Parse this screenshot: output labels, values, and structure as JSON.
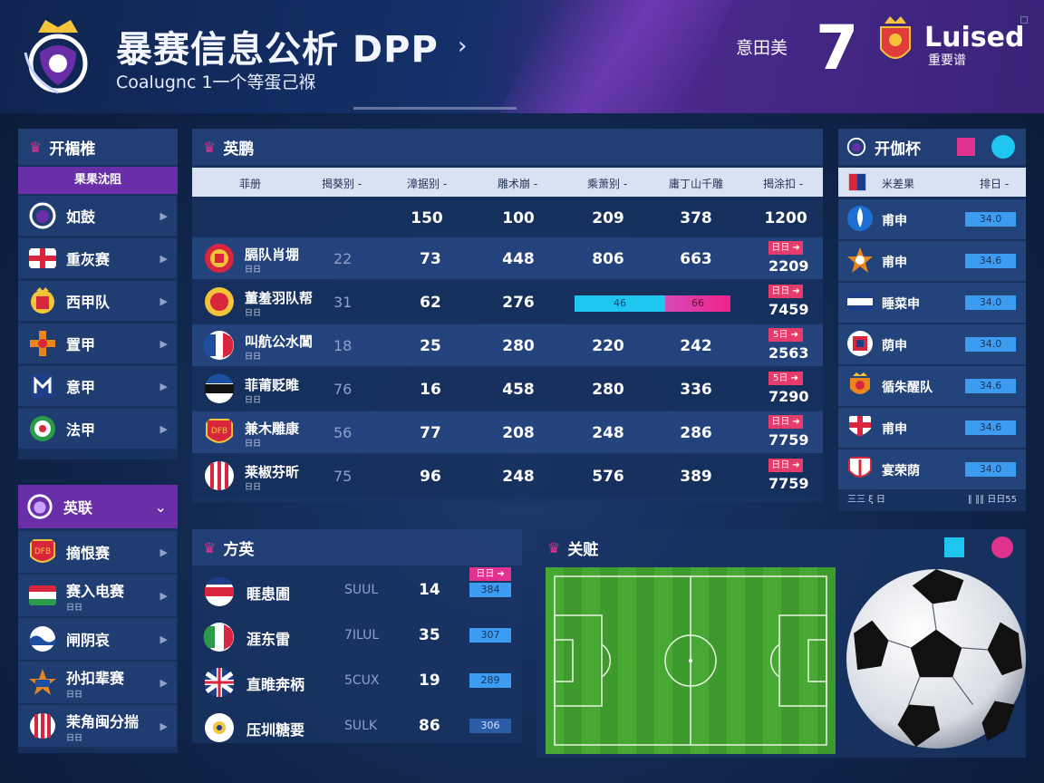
{
  "header": {
    "title": "暴赛信息公析 DPP",
    "title_arrow": "›",
    "subtitle": "Coalugnc 1一个等蛋己褓",
    "round_label": "意田美",
    "round_number": "7",
    "brand_name": "Luised",
    "brand_sub": "重要谱"
  },
  "sidebar_top": {
    "title": "开楣椎",
    "subheader": "果果沈阻",
    "items": [
      {
        "label": "如鼓"
      },
      {
        "label": "重灰赛"
      },
      {
        "label": "西甲队"
      },
      {
        "label": "置甲"
      },
      {
        "label": "意甲"
      },
      {
        "label": "法甲"
      }
    ]
  },
  "sidebar_bottom": {
    "title": "英联",
    "chevron": "⌄",
    "items": [
      {
        "label": "摘恨赛",
        "sub": ""
      },
      {
        "label": "赛入电赛",
        "sub": "日日"
      },
      {
        "label": "闸阴哀",
        "sub": ""
      },
      {
        "label": "孙扣辈赛",
        "sub": "日日"
      },
      {
        "label": "茉角闽分揣",
        "sub": "日日"
      }
    ]
  },
  "main_table": {
    "title": "英鹏",
    "headers": [
      "菲册",
      "揭葵别 -",
      "漳据别 -",
      "雕术崩 -",
      "乘萧别 -",
      "庸丁山千雕",
      "揭涂扣 -"
    ],
    "summary": [
      "150",
      "100",
      "209",
      "378",
      "1200"
    ],
    "rows": [
      {
        "name": "膈队肖堋",
        "sub": "日日",
        "num": "22",
        "v1": "73",
        "v2": "448",
        "v3": "806",
        "v4": "663",
        "badge": "日日 ➔",
        "last": "2209"
      },
      {
        "name": "董羞羽队帮",
        "sub": "日日",
        "num": "31",
        "v1": "62",
        "v2": "276",
        "bar_cyan": "46",
        "bar_pink": "66",
        "badge": "日日 ➔",
        "last": "7459"
      },
      {
        "name": "叫航公水閶",
        "sub": "日日",
        "num": "18",
        "v1": "25",
        "v2": "280",
        "v3": "220",
        "v4": "242",
        "badge": "5日 ➔",
        "last": "2563"
      },
      {
        "name": "菲莆贬睢",
        "sub": "日日",
        "num": "76",
        "v1": "16",
        "v2": "458",
        "v3": "280",
        "v4": "336",
        "badge": "5日 ➔",
        "last": "7290"
      },
      {
        "name": "兼木雕康",
        "sub": "日日",
        "num": "56",
        "v1": "77",
        "v2": "208",
        "v3": "248",
        "v4": "286",
        "badge": "日日 ➔",
        "last": "7759"
      },
      {
        "name": "莱椒芬昕",
        "sub": "日日",
        "num": "75",
        "v1": "96",
        "v2": "248",
        "v3": "576",
        "v4": "389",
        "badge": "日日 ➔",
        "last": "7759"
      }
    ]
  },
  "right_panel": {
    "title": "开伽杯",
    "col1": "米差果",
    "col2": "排日 -",
    "rows": [
      {
        "name": "甫申",
        "val": "34.0"
      },
      {
        "name": "甫申",
        "val": "34.6"
      },
      {
        "name": "睡菜申",
        "val": "34.0"
      },
      {
        "name": "荫申",
        "val": "34.0"
      },
      {
        "name": "循朱醒队",
        "val": "34.6"
      },
      {
        "name": "甫申",
        "val": "34.6"
      },
      {
        "name": "宴荣荫",
        "val": "34.0"
      }
    ],
    "footer_left": "三三   ξ   日",
    "footer_right": "∥ ∥∥ 日日55"
  },
  "bottom_left": {
    "title": "方英",
    "badge_top": "日日 ➔",
    "rows": [
      {
        "name": "睚患圃",
        "code": "SUUL",
        "val": "14",
        "pill": "384"
      },
      {
        "name": "涯东雷",
        "code": "7ILUL",
        "val": "35",
        "pill": "307"
      },
      {
        "name": "直睢奔柄",
        "code": "5CUX",
        "val": "19",
        "pill": "289"
      },
      {
        "name": "压圳糖要",
        "code": "SULK",
        "val": "86",
        "pill": "306"
      }
    ]
  },
  "bottom_right": {
    "title": "关赃"
  },
  "colors": {
    "accent_pink": "#e0338f",
    "accent_cyan": "#1ec6f0",
    "accent_blue_pill": "#3e9cf0",
    "purple": "#6a2fa8"
  }
}
